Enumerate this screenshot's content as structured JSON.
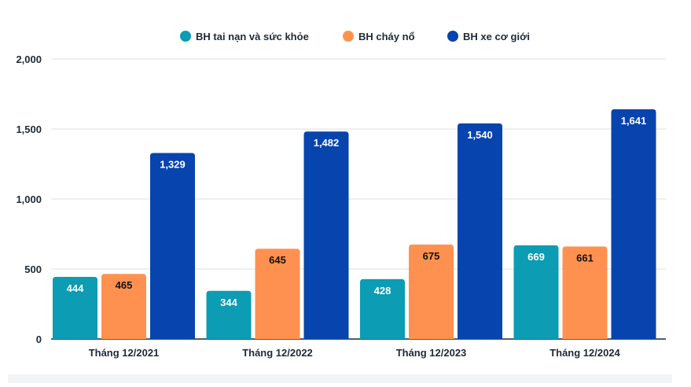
{
  "chart_data": {
    "type": "bar",
    "categories": [
      "Tháng 12/2021",
      "Tháng 12/2022",
      "Tháng 12/2023",
      "Tháng 12/2024"
    ],
    "series": [
      {
        "name": "BH tai nạn và sức khỏe",
        "color": "#0c9cb3",
        "label_color": "#ffffff",
        "values": [
          444,
          344,
          428,
          669
        ],
        "labels": [
          "444",
          "344",
          "428",
          "669"
        ]
      },
      {
        "name": "BH cháy nổ",
        "color": "#ff9150",
        "label_color": "#111111",
        "values": [
          465,
          645,
          675,
          661
        ],
        "labels": [
          "465",
          "645",
          "675",
          "661"
        ]
      },
      {
        "name": "BH xe cơ giới",
        "color": "#0744ae",
        "label_color": "#ffffff",
        "values": [
          1329,
          1482,
          1540,
          1641
        ],
        "labels": [
          "1,329",
          "1,482",
          "1,540",
          "1,641"
        ]
      }
    ],
    "ylim": [
      0,
      2000
    ],
    "yticks": [
      0,
      500,
      1000,
      1500,
      2000
    ],
    "ytick_labels": [
      "0",
      "500",
      "1,000",
      "1,500",
      "2,000"
    ],
    "grid": true,
    "legend_position": "top-center",
    "title": "",
    "xlabel": "",
    "ylabel": ""
  }
}
